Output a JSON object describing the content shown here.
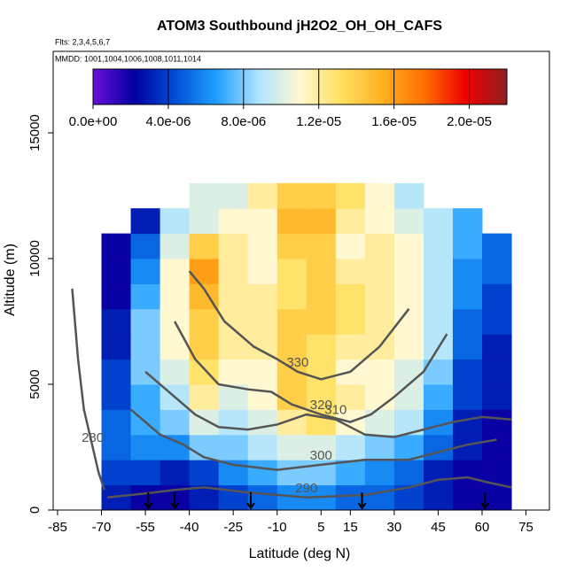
{
  "chart_data": {
    "type": "heatmap",
    "title": "ATOM3 Southbound jH2O2_OH_OH_CAFS",
    "subtitle": "Flts: 2,3,4,5,6,7",
    "annotation": "MMDD: 1001,1004,1006,1008,1011,1014",
    "x_label": "Latitude (deg N)",
    "y_label": "Altitude (m)",
    "xlim": [
      -86.5,
      83
    ],
    "ylim": [
      0,
      18240
    ],
    "xticks": [
      -85,
      -70,
      -55,
      -40,
      -25,
      -10,
      5,
      15,
      30,
      45,
      60,
      75
    ],
    "yticks": [
      0,
      5000,
      10000,
      15000
    ],
    "x_edges": [
      -70,
      -60,
      -50,
      -40,
      -30,
      -20,
      -10,
      0,
      10,
      20,
      30,
      40,
      50,
      60,
      70
    ],
    "y_edges": [
      0,
      1000,
      2000,
      3000,
      4000,
      5000,
      6000,
      7000,
      8000,
      9000,
      10000,
      11000,
      12000,
      13000
    ],
    "z": [
      [
        3e-06,
        2e-06,
        2e-06,
        3e-06,
        4e-06,
        5e-06,
        6e-06,
        6e-06,
        5e-06,
        5e-06,
        4e-06,
        3e-06,
        2e-06,
        2e-06
      ],
      [
        4e-06,
        4e-06,
        3e-06,
        4e-06,
        6e-06,
        7e-06,
        8e-06,
        8e-06,
        7e-06,
        6e-06,
        5e-06,
        3e-06,
        2e-06,
        2e-06
      ],
      [
        5e-06,
        6e-06,
        6e-06,
        8e-06,
        8e-06,
        9e-06,
        1e-05,
        1e-05,
        9e-06,
        8e-06,
        7e-06,
        5e-06,
        3e-06,
        2e-06
      ],
      [
        5e-06,
        7e-06,
        8e-06,
        1e-05,
        9e-06,
        1e-05,
        1.2e-05,
        1.3e-05,
        1.1e-05,
        1e-05,
        9e-06,
        6e-06,
        3e-06,
        2e-06
      ],
      [
        4e-06,
        7e-06,
        9e-06,
        1.2e-05,
        1e-05,
        1.1e-05,
        1.4e-05,
        1.3e-05,
        1.2e-05,
        1.1e-05,
        1e-05,
        7e-06,
        4e-06,
        3e-06
      ],
      [
        4e-06,
        8e-06,
        1e-05,
        1.3e-05,
        1.1e-05,
        1.1e-05,
        1.4e-05,
        1.3e-05,
        1.1e-05,
        1.1e-05,
        1e-05,
        8e-06,
        4e-06,
        3e-06
      ],
      [
        3e-06,
        8e-06,
        1.1e-05,
        1.4e-05,
        1.2e-05,
        1.2e-05,
        1.4e-05,
        1.3e-05,
        1.2e-05,
        1.2e-05,
        1.1e-05,
        9e-06,
        5e-06,
        3e-06
      ],
      [
        3e-06,
        8e-06,
        1.1e-05,
        1.4e-05,
        1.2e-05,
        1.2e-05,
        1.4e-05,
        1.4e-05,
        1.3e-05,
        1.2e-05,
        1.1e-05,
        9e-06,
        5e-06,
        4e-06
      ],
      [
        2e-06,
        7e-06,
        1.1e-05,
        1.5e-05,
        1.2e-05,
        1.2e-05,
        1.3e-05,
        1.4e-05,
        1.3e-05,
        1.2e-05,
        1.1e-05,
        9e-06,
        6e-06,
        4e-06
      ],
      [
        2e-06,
        6e-06,
        1.1e-05,
        1.6e-05,
        1.2e-05,
        1.1e-05,
        1.3e-05,
        1.4e-05,
        1.2e-05,
        1.2e-05,
        1.1e-05,
        9e-06,
        6e-06,
        5e-06
      ],
      [
        2e-06,
        5e-06,
        1e-05,
        1.4e-05,
        1.2e-05,
        1.1e-05,
        1.4e-05,
        1.4e-05,
        1.1e-05,
        1.2e-05,
        1.1e-05,
        9e-06,
        7e-06,
        5e-06
      ],
      [
        null,
        3e-06,
        9e-06,
        1e-05,
        1.1e-05,
        1.1e-05,
        1.5e-05,
        1.5e-05,
        1.2e-05,
        1.1e-05,
        1e-05,
        9e-06,
        7e-06,
        null
      ],
      [
        null,
        null,
        null,
        1e-05,
        1e-05,
        1.2e-05,
        1.4e-05,
        1.4e-05,
        1.3e-05,
        1.1e-05,
        9e-06,
        null,
        null,
        null
      ]
    ],
    "clim": [
      0,
      2.2e-05
    ],
    "cticks": [
      {
        "value": 0,
        "label": "0.0e+00"
      },
      {
        "value": 4e-06,
        "label": "4.0e-06"
      },
      {
        "value": 8e-06,
        "label": "8.0e-06"
      },
      {
        "value": 1.2e-05,
        "label": "1.2e-05"
      },
      {
        "value": 1.6e-05,
        "label": "1.6e-05"
      },
      {
        "value": 2e-05,
        "label": "2.0e-05"
      }
    ],
    "colormap": [
      "#6a10d8",
      "#0000a0",
      "#0050d8",
      "#20a0ff",
      "#b0e4ff",
      "#fff8d0",
      "#ffe060",
      "#ffb020",
      "#ff7000",
      "#f00000",
      "#902020"
    ],
    "contour_color": "#555555",
    "contours": [
      {
        "level": 280,
        "x": [
          -80,
          -78,
          -76,
          -73,
          -71,
          -69
        ],
        "y": [
          8800,
          6000,
          4000,
          2500,
          1500,
          800
        ]
      },
      {
        "level": 290,
        "x": [
          -68,
          -60,
          -52,
          -45,
          -35,
          -20,
          0,
          20,
          35,
          45,
          55,
          62,
          70
        ],
        "y": [
          500,
          600,
          700,
          800,
          900,
          700,
          500,
          600,
          900,
          1200,
          1300,
          1100,
          900
        ]
      },
      {
        "level": 300,
        "x": [
          -60,
          -50,
          -42,
          -35,
          -25,
          -10,
          5,
          20,
          35,
          45,
          55,
          65
        ],
        "y": [
          4000,
          3000,
          2600,
          2100,
          1800,
          1600,
          1800,
          2000,
          2000,
          2300,
          2600,
          2800
        ]
      },
      {
        "level": 310,
        "x": [
          -55,
          -45,
          -38,
          -30,
          -20,
          -10,
          0,
          10,
          20,
          30,
          40,
          50,
          60,
          70
        ],
        "y": [
          5500,
          4500,
          3800,
          3300,
          3200,
          3400,
          3800,
          3600,
          3000,
          2900,
          3200,
          3500,
          3700,
          3600
        ]
      },
      {
        "level": 320,
        "x": [
          -45,
          -38,
          -30,
          -20,
          -12,
          -5,
          5,
          15,
          22,
          30,
          40,
          48
        ],
        "y": [
          7500,
          6000,
          5000,
          4800,
          4700,
          4200,
          3800,
          3500,
          3800,
          4500,
          5500,
          7000
        ]
      },
      {
        "level": 330,
        "x": [
          -40,
          -35,
          -28,
          -18,
          -10,
          -3,
          5,
          15,
          25,
          35
        ],
        "y": [
          9500,
          8800,
          7500,
          6500,
          6000,
          5500,
          5200,
          5500,
          6500,
          8000
        ]
      }
    ],
    "markers": [
      -54,
      -45,
      -19,
      19,
      61
    ]
  }
}
